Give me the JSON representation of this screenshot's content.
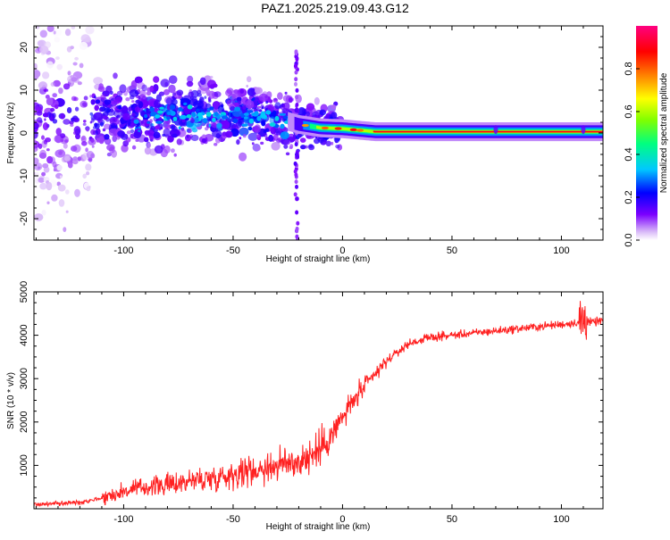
{
  "title": "PAZ1.2025.219.09.43.G12",
  "chart_data": [
    {
      "type": "heatmap",
      "xlabel": "Height of straight line (km)",
      "ylabel": "Frequency (Hz)",
      "xlim": [
        -141,
        119
      ],
      "ylim": [
        -25,
        25
      ],
      "xticks": [
        -100,
        -50,
        0,
        50,
        100
      ],
      "yticks": [
        -20,
        -10,
        0,
        10,
        20
      ],
      "colorbar": {
        "label": "Normalized spectral amplitude",
        "range": [
          0,
          1
        ],
        "ticks": [
          0.0,
          0.2,
          0.4,
          0.6,
          0.8
        ],
        "colormap": [
          "#ffffff",
          "#d8b8f8",
          "#7b00ff",
          "#0000ff",
          "#00c8ff",
          "#00ff80",
          "#80ff00",
          "#ffff00",
          "#ff8000",
          "#ff0000",
          "#ff0080"
        ]
      },
      "ridge": [
        {
          "x": -140,
          "f": 3.5
        },
        {
          "x": -100,
          "f": 4.0
        },
        {
          "x": -70,
          "f": 4.5
        },
        {
          "x": -50,
          "f": 4.0
        },
        {
          "x": -30,
          "f": 3.5
        },
        {
          "x": -20,
          "f": 2.0
        },
        {
          "x": -10,
          "f": 1.2
        },
        {
          "x": 0,
          "f": 1.0
        },
        {
          "x": 15,
          "f": 0.3
        },
        {
          "x": 70,
          "f": 0.3
        },
        {
          "x": 100,
          "f": 0.3
        },
        {
          "x": 119,
          "f": 0.3
        }
      ]
    },
    {
      "type": "line",
      "xlabel": "Height of straight line (km)",
      "ylabel": "SNR (10 * v/v)",
      "xlim": [
        -141,
        119
      ],
      "ylim": [
        0,
        5000
      ],
      "xticks": [
        -100,
        -50,
        0,
        50,
        100
      ],
      "yticks": [
        1000,
        2000,
        3000,
        4000,
        5000
      ],
      "color": "#ff2020",
      "series": [
        {
          "x": [
            -141,
            -130,
            -120,
            -110,
            -100,
            -90,
            -80,
            -70,
            -60,
            -50,
            -40,
            -30,
            -20,
            -15,
            -10,
            -5,
            0,
            5,
            10,
            15,
            20,
            25,
            30,
            40,
            50,
            60,
            70,
            80,
            90,
            100,
            105,
            108,
            110,
            112,
            115,
            119
          ],
          "y": [
            100,
            120,
            150,
            250,
            400,
            500,
            550,
            650,
            700,
            800,
            900,
            1000,
            1100,
            1200,
            1400,
            1700,
            2100,
            2500,
            2800,
            3100,
            3400,
            3600,
            3800,
            3950,
            4000,
            4050,
            4100,
            4150,
            4200,
            4250,
            4280,
            4300,
            4350,
            4300,
            4300,
            4350
          ]
        }
      ]
    }
  ]
}
